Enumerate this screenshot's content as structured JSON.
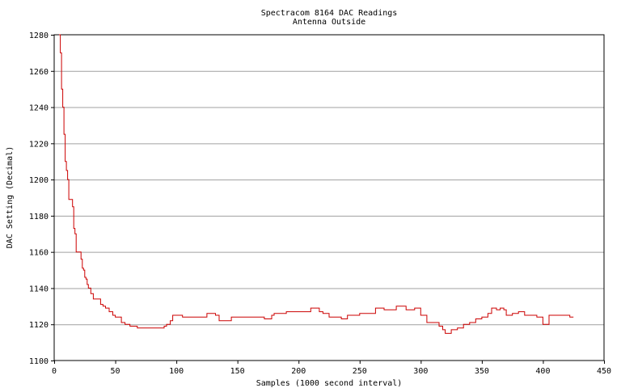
{
  "chart_data": {
    "type": "line",
    "title": "Spectracom 8164 DAC Readings",
    "subtitle": "Antenna Outside",
    "xlabel": "Samples (1000 second interval)",
    "ylabel": "DAC Setting (Decimal)",
    "xlim": [
      0,
      450
    ],
    "ylim": [
      1100,
      1280
    ],
    "xticks": [
      0,
      50,
      100,
      150,
      200,
      250,
      300,
      350,
      400,
      450
    ],
    "yticks": [
      1100,
      1120,
      1140,
      1160,
      1180,
      1200,
      1220,
      1240,
      1260,
      1280
    ],
    "grid": "horizontal",
    "line_color": "#cc0000",
    "series": [
      {
        "x": [
          4,
          5,
          6,
          7,
          8,
          9,
          10,
          11,
          12,
          14,
          15,
          16,
          17,
          18,
          20,
          22,
          23,
          24,
          25,
          26,
          27,
          28,
          30,
          32,
          35,
          38,
          40,
          42,
          45,
          48,
          50,
          52,
          55,
          58,
          60,
          62,
          65,
          68,
          70,
          75,
          80,
          85,
          88,
          90,
          92,
          95,
          97,
          100,
          102,
          105,
          110,
          115,
          120,
          125,
          130,
          132,
          135,
          138,
          140,
          145,
          150,
          155,
          160,
          165,
          170,
          172,
          175,
          178,
          180,
          185,
          190,
          195,
          200,
          205,
          210,
          213,
          215,
          217,
          220,
          225,
          230,
          235,
          240,
          245,
          250,
          255,
          260,
          263,
          265,
          270,
          275,
          280,
          282,
          285,
          288,
          290,
          295,
          297,
          300,
          303,
          305,
          308,
          310,
          315,
          318,
          320,
          325,
          330,
          335,
          340,
          345,
          350,
          355,
          358,
          360,
          362,
          365,
          368,
          370,
          375,
          380,
          385,
          390,
          395,
          400,
          402,
          405,
          410,
          415,
          420,
          422,
          425
        ],
        "y": [
          1280,
          1270,
          1250,
          1240,
          1225,
          1210,
          1205,
          1200,
          1189,
          1189,
          1185,
          1173,
          1170,
          1160,
          1160,
          1156,
          1151,
          1150,
          1146,
          1145,
          1142,
          1140,
          1137,
          1134,
          1134,
          1131,
          1130,
          1129,
          1127,
          1125,
          1124,
          1124,
          1121,
          1120,
          1120,
          1119,
          1119,
          1118,
          1118,
          1118,
          1118,
          1118,
          1118,
          1119,
          1120,
          1122,
          1125,
          1125,
          1125,
          1124,
          1124,
          1124,
          1124,
          1126,
          1126,
          1125,
          1122,
          1122,
          1122,
          1124,
          1124,
          1124,
          1124,
          1124,
          1124,
          1123,
          1123,
          1125,
          1126,
          1126,
          1127,
          1127,
          1127,
          1127,
          1129,
          1129,
          1129,
          1127,
          1126,
          1124,
          1124,
          1123,
          1125,
          1125,
          1126,
          1126,
          1126,
          1129,
          1129,
          1128,
          1128,
          1130,
          1130,
          1130,
          1128,
          1128,
          1129,
          1129,
          1125,
          1125,
          1121,
          1121,
          1121,
          1119,
          1117,
          1115,
          1117,
          1118,
          1120,
          1121,
          1123,
          1124,
          1126,
          1129,
          1129,
          1128,
          1129,
          1128,
          1125,
          1126,
          1127,
          1125,
          1125,
          1124,
          1120,
          1120,
          1125,
          1125,
          1125,
          1125,
          1124,
          1124
        ]
      }
    ]
  }
}
